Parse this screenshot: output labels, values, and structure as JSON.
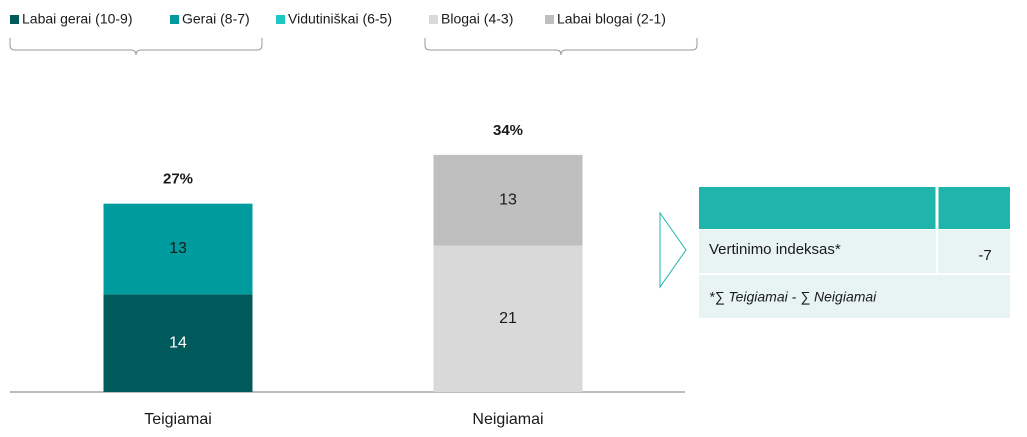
{
  "chart_data": {
    "type": "stacked_bar",
    "categories": [
      "Teigiamai",
      "Neigiamai"
    ],
    "series": [
      {
        "name": "Labai gerai (10-9)",
        "color": "#005a5b",
        "label_color": "#ffffff",
        "values": [
          14,
          null
        ]
      },
      {
        "name": "Gerai (8-7)",
        "color": "#009c9d",
        "label_color": "#1a1a1a",
        "values": [
          13,
          null
        ]
      },
      {
        "name": "Vidutiniškai (6-5)",
        "color": "#1fc7c4",
        "label_color": "#1a1a1a",
        "values": [
          null,
          null
        ]
      },
      {
        "name": "Blogai (4-3)",
        "color": "#d9d9d9",
        "label_color": "#1a1a1a",
        "values": [
          null,
          21
        ]
      },
      {
        "name": "Labai blogai (2-1)",
        "color": "#bfbfbf",
        "label_color": "#1a1a1a",
        "values": [
          null,
          13
        ]
      }
    ],
    "totals": {
      "values": [
        27,
        34
      ],
      "value_labels": [
        "27%",
        "34%"
      ]
    },
    "legend_groups": [
      "Teigiamai",
      "Neigiamai"
    ],
    "ylim": [
      0,
      40
    ]
  },
  "table": {
    "rows": [
      [
        "Vertinimo indeksas*",
        -7
      ]
    ],
    "note": "*∑ Teigiamai - ∑ Neigiamai"
  }
}
